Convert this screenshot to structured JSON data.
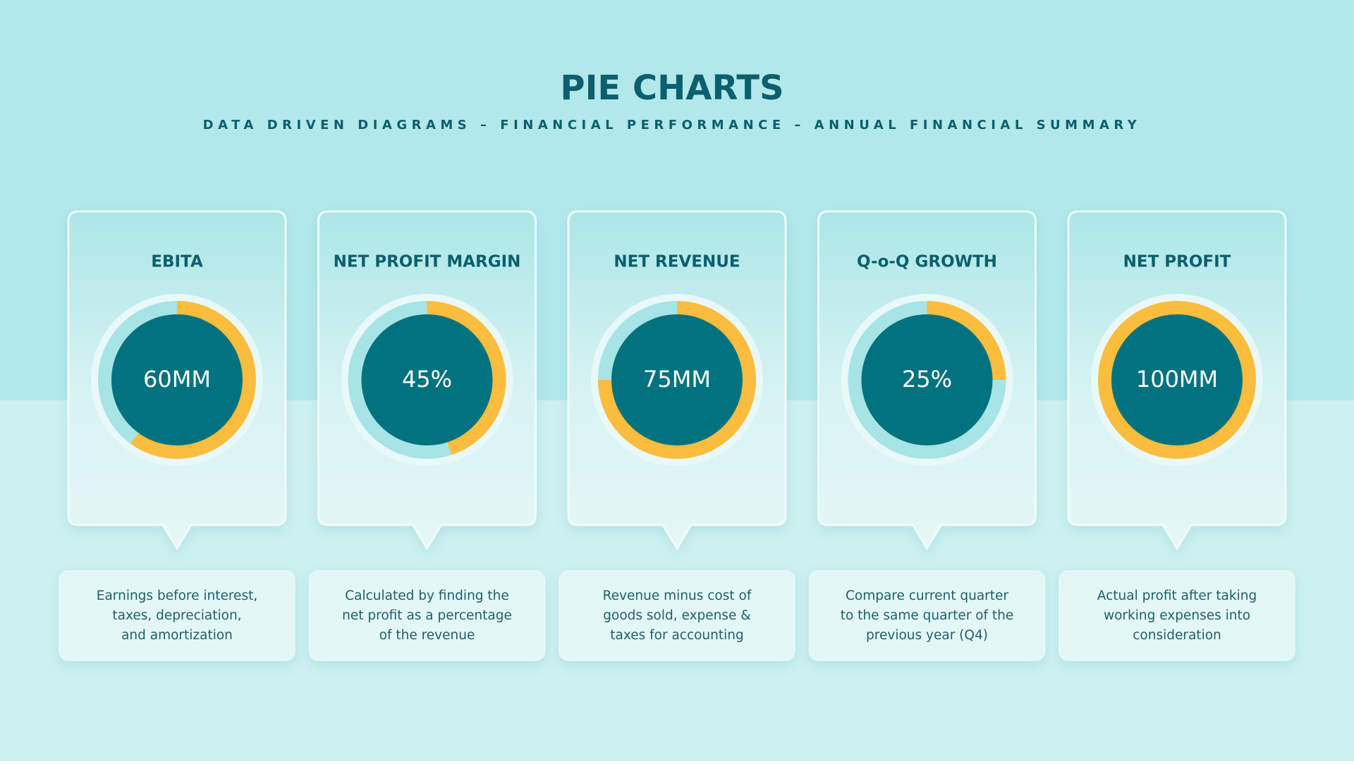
{
  "title": "PIE CHARTS",
  "subtitle": "DATA DRIVEN DIAGRAMS – FINANCIAL PERFORMANCE – ANNUAL FINANCIAL SUMMARY",
  "chart_data": [
    {
      "type": "pie",
      "title": "EBITA",
      "values": [
        60,
        40
      ],
      "value_labels": [
        "60MM",
        null
      ],
      "colors": [
        "#fbbd3d",
        "#a6e4e6"
      ],
      "description": [
        "Earnings before interest,",
        "taxes, depreciation,",
        "and amortization"
      ]
    },
    {
      "type": "pie",
      "title": "NET PROFIT MARGIN",
      "values": [
        45,
        55
      ],
      "value_labels": [
        "45%",
        null
      ],
      "colors": [
        "#fbbd3d",
        "#a6e4e6"
      ],
      "description": [
        "Calculated by finding the",
        "net profit as a percentage",
        "of the revenue"
      ]
    },
    {
      "type": "pie",
      "title": "NET REVENUE",
      "values": [
        75,
        25
      ],
      "value_labels": [
        "75MM",
        null
      ],
      "colors": [
        "#fbbd3d",
        "#a6e4e6"
      ],
      "description": [
        "Revenue minus cost of",
        "goods sold, expense &",
        "taxes for accounting"
      ]
    },
    {
      "type": "pie",
      "title": "Q-o-Q GROWTH",
      "values": [
        25,
        75
      ],
      "value_labels": [
        "25%",
        null
      ],
      "colors": [
        "#fbbd3d",
        "#a6e4e6"
      ],
      "description": [
        "Compare current quarter",
        "to the same quarter of the",
        "previous year (Q4)"
      ]
    },
    {
      "type": "pie",
      "title": "NET PROFIT",
      "values": [
        100,
        0
      ],
      "value_labels": [
        "100MM",
        null
      ],
      "colors": [
        "#fbbd3d",
        "#a6e4e6"
      ],
      "description": [
        "Actual profit after taking",
        "working expenses into",
        "consideration"
      ]
    }
  ]
}
